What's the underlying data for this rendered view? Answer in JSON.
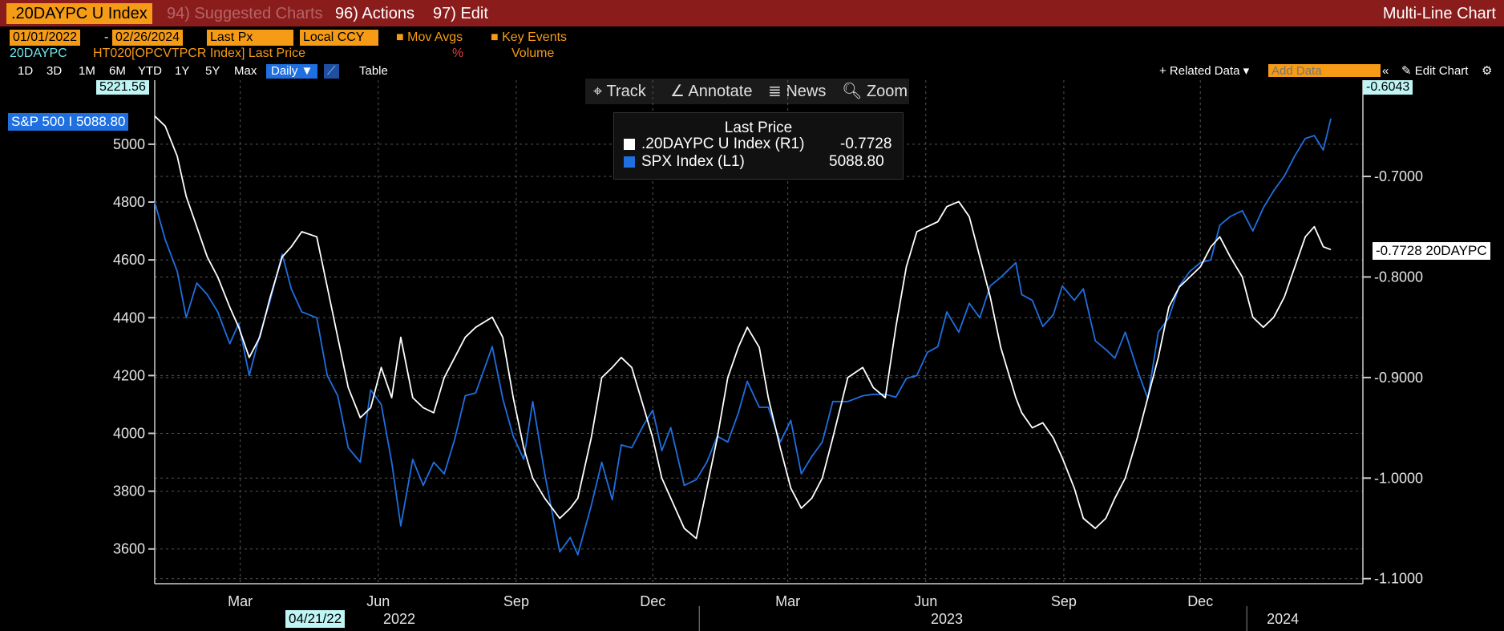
{
  "header": {
    "ticker": ".20DAYPC U Index",
    "suggested": "94) Suggested Charts",
    "actions": "96) Actions",
    "edit": "97) Edit",
    "chart_kind": "Multi-Line Chart"
  },
  "controls": {
    "start_date": "01/01/2022",
    "dash": "-",
    "end_date": "02/26/2024",
    "price_field": "Last Px",
    "currency": "Local CCY",
    "mov_avgs": "Mov Avgs",
    "key_events": "Key Events",
    "series1_code": "20DAYPC",
    "series2_desc": "HT020[OPCVTPCR Index] Last Price",
    "pct": "%",
    "volume": "Volume"
  },
  "periods": [
    "1D",
    "3D",
    "1M",
    "6M",
    "YTD",
    "1Y",
    "5Y",
    "Max"
  ],
  "frequency": "Daily ▼",
  "table_label": "Table",
  "related_data": "+ Related Data ▾",
  "add_data_placeholder": "Add Data",
  "edit_chart": "Edit Chart",
  "tools": {
    "track": "Track",
    "annotate": "Annotate",
    "news": "News",
    "zoom": "Zoom"
  },
  "legend": {
    "title": "Last Price",
    "rows": [
      {
        "name": ".20DAYPC U Index  (R1)",
        "value": "-0.7728",
        "color": "#ffffff"
      },
      {
        "name": "SPX Index  (L1)",
        "value": "5088.80",
        "color": "#1f6fe0"
      }
    ]
  },
  "tags": {
    "left_top": "5221.56",
    "right_top": "-0.6043",
    "spx_last": "S&P 500 I 5088.80",
    "pc_last": "-0.7728 20DAYPC",
    "cursor_date": "04/21/22"
  },
  "colors": {
    "spx": "#1f6fe0",
    "pc": "#ffffff",
    "accent": "#f59b16",
    "bar": "#8a1c1c"
  },
  "chart_data": {
    "type": "line",
    "title": "",
    "x_axis": {
      "months": [
        "Mar",
        "Jun",
        "Sep",
        "Dec",
        "Mar",
        "Jun",
        "Sep",
        "Dec"
      ],
      "years": [
        "2022",
        "2023",
        "2024"
      ],
      "range": [
        "2022-01-03",
        "2024-02-26"
      ]
    },
    "y_left": {
      "label": "",
      "range": [
        3480,
        5221.56
      ],
      "ticks": [
        3600,
        3800,
        4000,
        4200,
        4400,
        4600,
        4800,
        5000
      ]
    },
    "y_right": {
      "label": "",
      "range": [
        -1.105,
        -0.6043
      ],
      "ticks": [
        "-0.7000",
        "-0.8000",
        "-0.9000",
        "-1.0000",
        "-1.1000"
      ]
    },
    "grid": true,
    "legend_position": "top-center",
    "series": [
      {
        "name": "SPX Index  (L1)",
        "axis": "left",
        "points": [
          [
            "2022-01-03",
            4800
          ],
          [
            "2022-01-10",
            4670
          ],
          [
            "2022-01-18",
            4560
          ],
          [
            "2022-01-24",
            4400
          ],
          [
            "2022-01-31",
            4520
          ],
          [
            "2022-02-07",
            4480
          ],
          [
            "2022-02-14",
            4420
          ],
          [
            "2022-02-22",
            4310
          ],
          [
            "2022-02-28",
            4380
          ],
          [
            "2022-03-07",
            4200
          ],
          [
            "2022-03-14",
            4340
          ],
          [
            "2022-03-21",
            4460
          ],
          [
            "2022-03-29",
            4620
          ],
          [
            "2022-04-04",
            4500
          ],
          [
            "2022-04-11",
            4420
          ],
          [
            "2022-04-21",
            4400
          ],
          [
            "2022-04-28",
            4200
          ],
          [
            "2022-05-05",
            4130
          ],
          [
            "2022-05-12",
            3950
          ],
          [
            "2022-05-20",
            3900
          ],
          [
            "2022-05-27",
            4150
          ],
          [
            "2022-06-03",
            4100
          ],
          [
            "2022-06-10",
            3900
          ],
          [
            "2022-06-16",
            3680
          ],
          [
            "2022-06-24",
            3910
          ],
          [
            "2022-07-01",
            3820
          ],
          [
            "2022-07-08",
            3900
          ],
          [
            "2022-07-15",
            3860
          ],
          [
            "2022-07-22",
            3980
          ],
          [
            "2022-07-29",
            4130
          ],
          [
            "2022-08-05",
            4140
          ],
          [
            "2022-08-16",
            4300
          ],
          [
            "2022-08-23",
            4120
          ],
          [
            "2022-08-30",
            3990
          ],
          [
            "2022-09-06",
            3910
          ],
          [
            "2022-09-12",
            4110
          ],
          [
            "2022-09-20",
            3860
          ],
          [
            "2022-09-30",
            3590
          ],
          [
            "2022-10-07",
            3640
          ],
          [
            "2022-10-12",
            3580
          ],
          [
            "2022-10-21",
            3750
          ],
          [
            "2022-10-28",
            3900
          ],
          [
            "2022-11-04",
            3770
          ],
          [
            "2022-11-10",
            3960
          ],
          [
            "2022-11-17",
            3950
          ],
          [
            "2022-11-25",
            4030
          ],
          [
            "2022-12-01",
            4080
          ],
          [
            "2022-12-07",
            3940
          ],
          [
            "2022-12-13",
            4020
          ],
          [
            "2022-12-22",
            3820
          ],
          [
            "2022-12-30",
            3840
          ],
          [
            "2023-01-06",
            3900
          ],
          [
            "2023-01-13",
            3990
          ],
          [
            "2023-01-20",
            3970
          ],
          [
            "2023-01-27",
            4070
          ],
          [
            "2023-02-02",
            4180
          ],
          [
            "2023-02-10",
            4090
          ],
          [
            "2023-02-16",
            4090
          ],
          [
            "2023-02-24",
            3970
          ],
          [
            "2023-03-03",
            4045
          ],
          [
            "2023-03-10",
            3860
          ],
          [
            "2023-03-17",
            3920
          ],
          [
            "2023-03-24",
            3970
          ],
          [
            "2023-03-31",
            4110
          ],
          [
            "2023-04-10",
            4110
          ],
          [
            "2023-04-20",
            4130
          ],
          [
            "2023-04-27",
            4135
          ],
          [
            "2023-05-05",
            4135
          ],
          [
            "2023-05-12",
            4125
          ],
          [
            "2023-05-19",
            4190
          ],
          [
            "2023-05-26",
            4200
          ],
          [
            "2023-06-02",
            4280
          ],
          [
            "2023-06-09",
            4300
          ],
          [
            "2023-06-15",
            4420
          ],
          [
            "2023-06-23",
            4350
          ],
          [
            "2023-06-30",
            4450
          ],
          [
            "2023-07-07",
            4400
          ],
          [
            "2023-07-14",
            4510
          ],
          [
            "2023-07-21",
            4540
          ],
          [
            "2023-07-31",
            4590
          ],
          [
            "2023-08-04",
            4480
          ],
          [
            "2023-08-11",
            4460
          ],
          [
            "2023-08-18",
            4370
          ],
          [
            "2023-08-25",
            4410
          ],
          [
            "2023-08-31",
            4510
          ],
          [
            "2023-09-08",
            4460
          ],
          [
            "2023-09-14",
            4500
          ],
          [
            "2023-09-22",
            4320
          ],
          [
            "2023-09-29",
            4290
          ],
          [
            "2023-10-05",
            4260
          ],
          [
            "2023-10-12",
            4350
          ],
          [
            "2023-10-20",
            4220
          ],
          [
            "2023-10-27",
            4120
          ],
          [
            "2023-11-03",
            4350
          ],
          [
            "2023-11-10",
            4400
          ],
          [
            "2023-11-17",
            4510
          ],
          [
            "2023-11-24",
            4560
          ],
          [
            "2023-12-01",
            4590
          ],
          [
            "2023-12-08",
            4600
          ],
          [
            "2023-12-14",
            4720
          ],
          [
            "2023-12-21",
            4750
          ],
          [
            "2023-12-29",
            4770
          ],
          [
            "2024-01-05",
            4700
          ],
          [
            "2024-01-12",
            4780
          ],
          [
            "2024-01-19",
            4840
          ],
          [
            "2024-01-26",
            4890
          ],
          [
            "2024-02-02",
            4960
          ],
          [
            "2024-02-09",
            5020
          ],
          [
            "2024-02-15",
            5030
          ],
          [
            "2024-02-21",
            4980
          ],
          [
            "2024-02-26",
            5088.8
          ]
        ]
      },
      {
        "name": ".20DAYPC U Index  (R1)",
        "axis": "right",
        "points": [
          [
            "2022-01-03",
            -0.64
          ],
          [
            "2022-01-10",
            -0.65
          ],
          [
            "2022-01-18",
            -0.68
          ],
          [
            "2022-01-24",
            -0.72
          ],
          [
            "2022-01-31",
            -0.75
          ],
          [
            "2022-02-07",
            -0.78
          ],
          [
            "2022-02-14",
            -0.8
          ],
          [
            "2022-02-22",
            -0.83
          ],
          [
            "2022-02-28",
            -0.85
          ],
          [
            "2022-03-07",
            -0.88
          ],
          [
            "2022-03-14",
            -0.86
          ],
          [
            "2022-03-21",
            -0.82
          ],
          [
            "2022-03-29",
            -0.78
          ],
          [
            "2022-04-04",
            -0.77
          ],
          [
            "2022-04-11",
            -0.755
          ],
          [
            "2022-04-21",
            -0.76
          ],
          [
            "2022-04-28",
            -0.81
          ],
          [
            "2022-05-05",
            -0.86
          ],
          [
            "2022-05-12",
            -0.91
          ],
          [
            "2022-05-20",
            -0.94
          ],
          [
            "2022-05-27",
            -0.93
          ],
          [
            "2022-06-03",
            -0.89
          ],
          [
            "2022-06-10",
            -0.92
          ],
          [
            "2022-06-16",
            -0.86
          ],
          [
            "2022-06-24",
            -0.92
          ],
          [
            "2022-07-01",
            -0.93
          ],
          [
            "2022-07-08",
            -0.935
          ],
          [
            "2022-07-15",
            -0.9
          ],
          [
            "2022-07-22",
            -0.88
          ],
          [
            "2022-07-29",
            -0.86
          ],
          [
            "2022-08-05",
            -0.85
          ],
          [
            "2022-08-16",
            -0.84
          ],
          [
            "2022-08-23",
            -0.86
          ],
          [
            "2022-08-30",
            -0.92
          ],
          [
            "2022-09-06",
            -0.97
          ],
          [
            "2022-09-12",
            -1.0
          ],
          [
            "2022-09-20",
            -1.02
          ],
          [
            "2022-09-30",
            -1.04
          ],
          [
            "2022-10-07",
            -1.03
          ],
          [
            "2022-10-12",
            -1.02
          ],
          [
            "2022-10-21",
            -0.96
          ],
          [
            "2022-10-28",
            -0.9
          ],
          [
            "2022-11-04",
            -0.89
          ],
          [
            "2022-11-10",
            -0.88
          ],
          [
            "2022-11-17",
            -0.89
          ],
          [
            "2022-11-25",
            -0.93
          ],
          [
            "2022-12-01",
            -0.96
          ],
          [
            "2022-12-07",
            -1.0
          ],
          [
            "2022-12-13",
            -1.02
          ],
          [
            "2022-12-22",
            -1.05
          ],
          [
            "2022-12-30",
            -1.06
          ],
          [
            "2023-01-06",
            -1.01
          ],
          [
            "2023-01-13",
            -0.96
          ],
          [
            "2023-01-20",
            -0.9
          ],
          [
            "2023-01-27",
            -0.87
          ],
          [
            "2023-02-02",
            -0.85
          ],
          [
            "2023-02-10",
            -0.87
          ],
          [
            "2023-02-16",
            -0.92
          ],
          [
            "2023-02-24",
            -0.97
          ],
          [
            "2023-03-03",
            -1.01
          ],
          [
            "2023-03-10",
            -1.03
          ],
          [
            "2023-03-17",
            -1.02
          ],
          [
            "2023-03-24",
            -1.0
          ],
          [
            "2023-03-31",
            -0.96
          ],
          [
            "2023-04-10",
            -0.9
          ],
          [
            "2023-04-20",
            -0.89
          ],
          [
            "2023-04-27",
            -0.91
          ],
          [
            "2023-05-05",
            -0.92
          ],
          [
            "2023-05-12",
            -0.85
          ],
          [
            "2023-05-19",
            -0.79
          ],
          [
            "2023-05-26",
            -0.755
          ],
          [
            "2023-06-02",
            -0.75
          ],
          [
            "2023-06-09",
            -0.745
          ],
          [
            "2023-06-15",
            -0.73
          ],
          [
            "2023-06-23",
            -0.725
          ],
          [
            "2023-06-30",
            -0.74
          ],
          [
            "2023-07-07",
            -0.78
          ],
          [
            "2023-07-14",
            -0.82
          ],
          [
            "2023-07-21",
            -0.87
          ],
          [
            "2023-07-31",
            -0.92
          ],
          [
            "2023-08-04",
            -0.935
          ],
          [
            "2023-08-11",
            -0.95
          ],
          [
            "2023-08-18",
            -0.945
          ],
          [
            "2023-08-25",
            -0.96
          ],
          [
            "2023-08-31",
            -0.98
          ],
          [
            "2023-09-08",
            -1.01
          ],
          [
            "2023-09-14",
            -1.04
          ],
          [
            "2023-09-22",
            -1.05
          ],
          [
            "2023-09-29",
            -1.04
          ],
          [
            "2023-10-05",
            -1.02
          ],
          [
            "2023-10-12",
            -1.0
          ],
          [
            "2023-10-20",
            -0.96
          ],
          [
            "2023-10-27",
            -0.92
          ],
          [
            "2023-11-03",
            -0.88
          ],
          [
            "2023-11-10",
            -0.83
          ],
          [
            "2023-11-17",
            -0.81
          ],
          [
            "2023-11-24",
            -0.8
          ],
          [
            "2023-12-01",
            -0.79
          ],
          [
            "2023-12-08",
            -0.77
          ],
          [
            "2023-12-14",
            -0.76
          ],
          [
            "2023-12-21",
            -0.78
          ],
          [
            "2023-12-29",
            -0.8
          ],
          [
            "2024-01-05",
            -0.84
          ],
          [
            "2024-01-12",
            -0.85
          ],
          [
            "2024-01-19",
            -0.84
          ],
          [
            "2024-01-26",
            -0.82
          ],
          [
            "2024-02-02",
            -0.79
          ],
          [
            "2024-02-09",
            -0.76
          ],
          [
            "2024-02-15",
            -0.75
          ],
          [
            "2024-02-21",
            -0.77
          ],
          [
            "2024-02-26",
            -0.7728
          ]
        ]
      }
    ]
  }
}
